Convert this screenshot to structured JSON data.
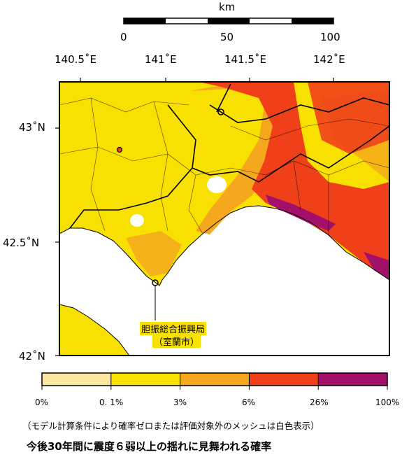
{
  "scale_bar": {
    "unit": "km",
    "ticks": [
      "0",
      "50",
      "100"
    ]
  },
  "longitude_labels": [
    "140.5˚E",
    "141˚E",
    "141.5˚E",
    "142˚E"
  ],
  "latitude_labels": [
    "43˚N",
    "42.5˚N",
    "42˚N"
  ],
  "place": {
    "name": "胆振総合振興局",
    "city": "（室蘭市）"
  },
  "legend": {
    "colors": [
      "#fde6a0",
      "#f8e000",
      "#f5a81d",
      "#f0401a",
      "#a3106a"
    ],
    "labels": [
      "0%",
      "0. 1%",
      "3%",
      "6%",
      "26%",
      "100%"
    ]
  },
  "note": "（モデル計算条件により確率ゼロまたは評価対象外のメッシュは白色表示）",
  "caption": "今後30年間に震度６弱以上の揺れに見舞われる確率"
}
